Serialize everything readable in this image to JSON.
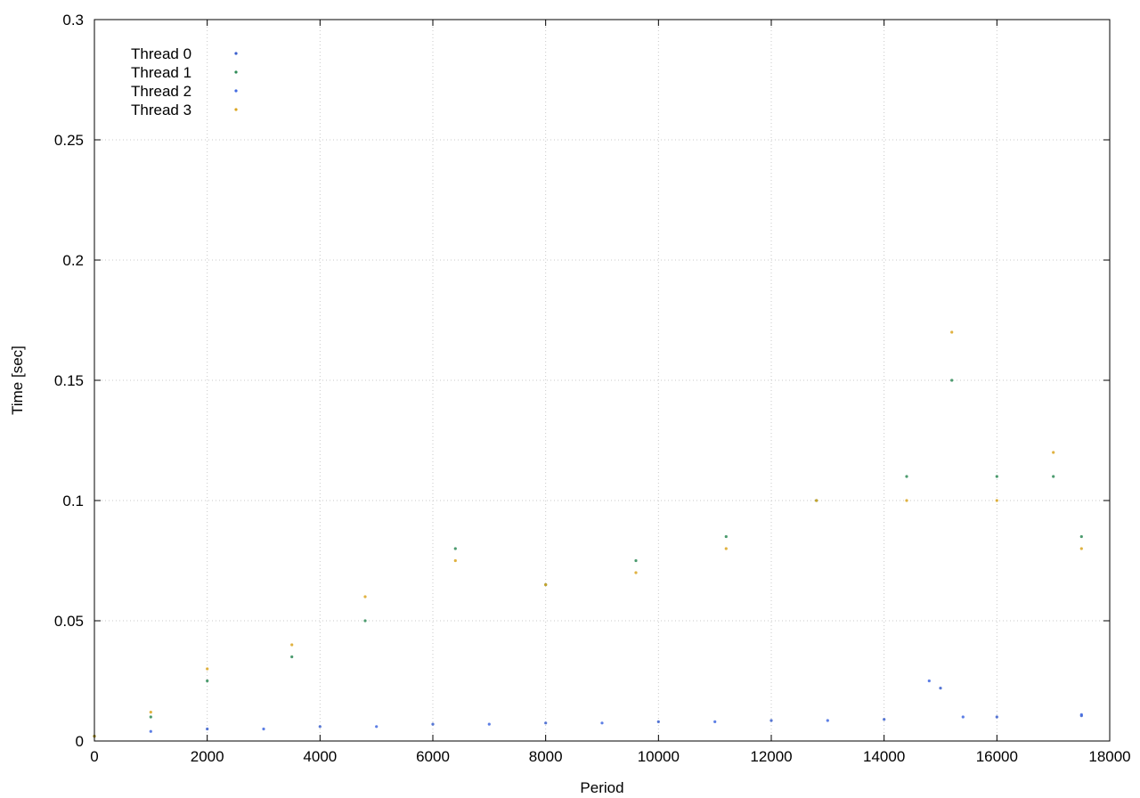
{
  "chart_data": {
    "type": "scatter",
    "title": "",
    "xlabel": "Period",
    "ylabel": "Time [sec]",
    "xlim": [
      0,
      18000
    ],
    "ylim": [
      0,
      0.3
    ],
    "xticks": [
      "0",
      "2000",
      "4000",
      "6000",
      "8000",
      "10000",
      "12000",
      "14000",
      "16000",
      "18000"
    ],
    "yticks": [
      "0",
      "0.05",
      "0.1",
      "0.15",
      "0.2",
      "0.25",
      "0.3"
    ],
    "grid": true,
    "legend_position": "top-left",
    "series": [
      {
        "name": "Thread 0",
        "color": "#3a5fcd",
        "marker": "dot",
        "points": [
          [
            0,
            0.002
          ],
          [
            2000,
            0.005
          ],
          [
            4000,
            0.006
          ],
          [
            6000,
            0.007
          ],
          [
            8000,
            0.0075
          ],
          [
            10000,
            0.008
          ],
          [
            12000,
            0.0085
          ],
          [
            14000,
            0.009
          ],
          [
            15000,
            0.022
          ],
          [
            16000,
            0.01
          ],
          [
            17500,
            0.0105
          ]
        ]
      },
      {
        "name": "Thread 1",
        "color": "#2e8b57",
        "marker": "dot",
        "points": [
          [
            0,
            0.002
          ],
          [
            1000,
            0.01
          ],
          [
            2000,
            0.025
          ],
          [
            3500,
            0.035
          ],
          [
            4800,
            0.05
          ],
          [
            6400,
            0.08
          ],
          [
            8000,
            0.065
          ],
          [
            9600,
            0.075
          ],
          [
            11200,
            0.085
          ],
          [
            12800,
            0.1
          ],
          [
            14400,
            0.11
          ],
          [
            15200,
            0.15
          ],
          [
            16000,
            0.11
          ],
          [
            17000,
            0.11
          ],
          [
            17500,
            0.085
          ]
        ]
      },
      {
        "name": "Thread 2",
        "color": "#4169e1",
        "marker": "dot",
        "points": [
          [
            1000,
            0.004
          ],
          [
            3000,
            0.005
          ],
          [
            5000,
            0.006
          ],
          [
            7000,
            0.007
          ],
          [
            9000,
            0.0075
          ],
          [
            11000,
            0.008
          ],
          [
            13000,
            0.0085
          ],
          [
            14800,
            0.025
          ],
          [
            15400,
            0.01
          ],
          [
            17500,
            0.011
          ]
        ]
      },
      {
        "name": "Thread 3",
        "color": "#daa520",
        "marker": "dot",
        "points": [
          [
            0,
            0.002
          ],
          [
            1000,
            0.012
          ],
          [
            2000,
            0.03
          ],
          [
            3500,
            0.04
          ],
          [
            4800,
            0.06
          ],
          [
            6400,
            0.075
          ],
          [
            8000,
            0.065
          ],
          [
            9600,
            0.07
          ],
          [
            11200,
            0.08
          ],
          [
            12800,
            0.1
          ],
          [
            14400,
            0.1
          ],
          [
            15200,
            0.17
          ],
          [
            16000,
            0.1
          ],
          [
            17000,
            0.12
          ],
          [
            17500,
            0.08
          ]
        ]
      }
    ]
  }
}
